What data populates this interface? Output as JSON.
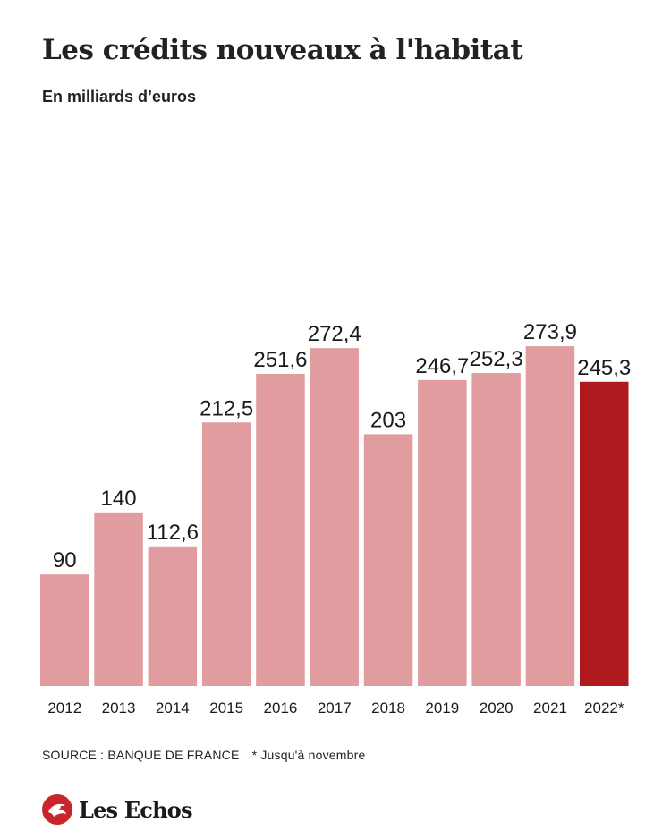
{
  "header": {
    "title": "Les crédits nouveaux à l'habitat",
    "subtitle": "En milliards d’euros"
  },
  "footer": {
    "source": "SOURCE : BANQUE DE FRANCE",
    "note": "* Jusqu'à novembre",
    "logo_text": "Les Echos",
    "logo_icon": "les-echos-logo-icon"
  },
  "colors": {
    "bar": "#e09c9e",
    "bar_highlight": "#b0191d"
  },
  "chart_data": {
    "type": "bar",
    "title": "Les crédits nouveaux à l'habitat",
    "subtitle": "En milliards d’euros",
    "categories": [
      "2012",
      "2013",
      "2014",
      "2015",
      "2016",
      "2017",
      "2018",
      "2019",
      "2020",
      "2021",
      "2022*"
    ],
    "values": [
      90,
      140,
      112.6,
      212.5,
      251.6,
      272.4,
      203,
      246.7,
      252.3,
      273.9,
      245.3
    ],
    "value_labels": [
      "90",
      "140",
      "112,6",
      "212,5",
      "251,6",
      "272,4",
      "203",
      "246,7",
      "252,3",
      "273,9",
      "245,3"
    ],
    "highlight_index": 10,
    "xlabel": "",
    "ylabel": "",
    "ylim": [
      0,
      300
    ],
    "grid": false,
    "legend": "none"
  }
}
